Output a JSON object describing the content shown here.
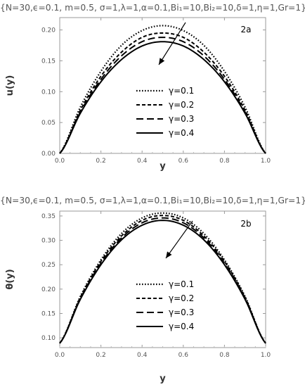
{
  "chart_data": [
    {
      "type": "line",
      "title": "{N=30,ϵ=0.1, m=0.5, σ=1,λ=1,α=0.1,Bi₁=10,Bi₂=10,δ=1,η=1,Gr=1}",
      "panel_label": "2a",
      "xlabel": "y",
      "ylabel": "u(y)",
      "xlim": [
        0,
        1
      ],
      "ylim": [
        0,
        0.22
      ],
      "xticks": [
        "0.0",
        "0.2",
        "0.4",
        "0.6",
        "0.8",
        "1.0"
      ],
      "yticks": [
        "0.00",
        "0.05",
        "0.10",
        "0.15",
        "0.20"
      ],
      "grid": false,
      "legend_position": "lower-right",
      "x": [
        0,
        0.1,
        0.2,
        0.3,
        0.4,
        0.5,
        0.6,
        0.7,
        0.8,
        0.9,
        1.0
      ],
      "series": [
        {
          "name": "γ=0.1",
          "style": "dotted",
          "values": [
            0,
            0.075,
            0.133,
            0.175,
            0.199,
            0.207,
            0.199,
            0.175,
            0.133,
            0.075,
            0
          ]
        },
        {
          "name": "γ=0.2",
          "style": "dashed",
          "values": [
            0,
            0.07,
            0.125,
            0.164,
            0.188,
            0.195,
            0.188,
            0.164,
            0.125,
            0.07,
            0
          ]
        },
        {
          "name": "γ=0.3",
          "style": "long-dashed",
          "values": [
            0,
            0.067,
            0.12,
            0.158,
            0.181,
            0.188,
            0.181,
            0.158,
            0.12,
            0.067,
            0
          ]
        },
        {
          "name": "γ=0.4",
          "style": "solid",
          "values": [
            0,
            0.065,
            0.116,
            0.152,
            0.174,
            0.181,
            0.174,
            0.152,
            0.116,
            0.065,
            0
          ]
        }
      ]
    },
    {
      "type": "line",
      "title": "{N=30,ϵ=0.1, m=0.5, σ=1,λ=1,α=0.1,Bi₁=10,Bi₂=10,δ=1,η=1,Gr=1}",
      "panel_label": "2b",
      "xlabel": "y",
      "ylabel": "θ(y)",
      "xlim": [
        0,
        1
      ],
      "ylim": [
        0.08,
        0.36
      ],
      "xticks": [
        "0.0",
        "0.2",
        "0.4",
        "0.6",
        "0.8",
        "1.0"
      ],
      "yticks": [
        "0.10",
        "0.15",
        "0.20",
        "0.25",
        "0.30",
        "0.35"
      ],
      "grid": false,
      "legend_position": "lower-right",
      "x": [
        0,
        0.1,
        0.2,
        0.3,
        0.4,
        0.5,
        0.6,
        0.7,
        0.8,
        0.9,
        1.0
      ],
      "series": [
        {
          "name": "γ=0.1",
          "style": "dotted",
          "values": [
            0.089,
            0.185,
            0.26,
            0.314,
            0.346,
            0.356,
            0.346,
            0.314,
            0.26,
            0.185,
            0.089
          ]
        },
        {
          "name": "γ=0.2",
          "style": "dashed",
          "values": [
            0.089,
            0.183,
            0.257,
            0.309,
            0.341,
            0.351,
            0.341,
            0.309,
            0.257,
            0.183,
            0.089
          ]
        },
        {
          "name": "γ=0.3",
          "style": "long-dashed",
          "values": [
            0.089,
            0.181,
            0.253,
            0.305,
            0.336,
            0.346,
            0.336,
            0.305,
            0.253,
            0.181,
            0.089
          ]
        },
        {
          "name": "γ=0.4",
          "style": "solid",
          "values": [
            0.089,
            0.179,
            0.25,
            0.301,
            0.331,
            0.341,
            0.331,
            0.301,
            0.25,
            0.179,
            0.089
          ]
        }
      ]
    }
  ]
}
